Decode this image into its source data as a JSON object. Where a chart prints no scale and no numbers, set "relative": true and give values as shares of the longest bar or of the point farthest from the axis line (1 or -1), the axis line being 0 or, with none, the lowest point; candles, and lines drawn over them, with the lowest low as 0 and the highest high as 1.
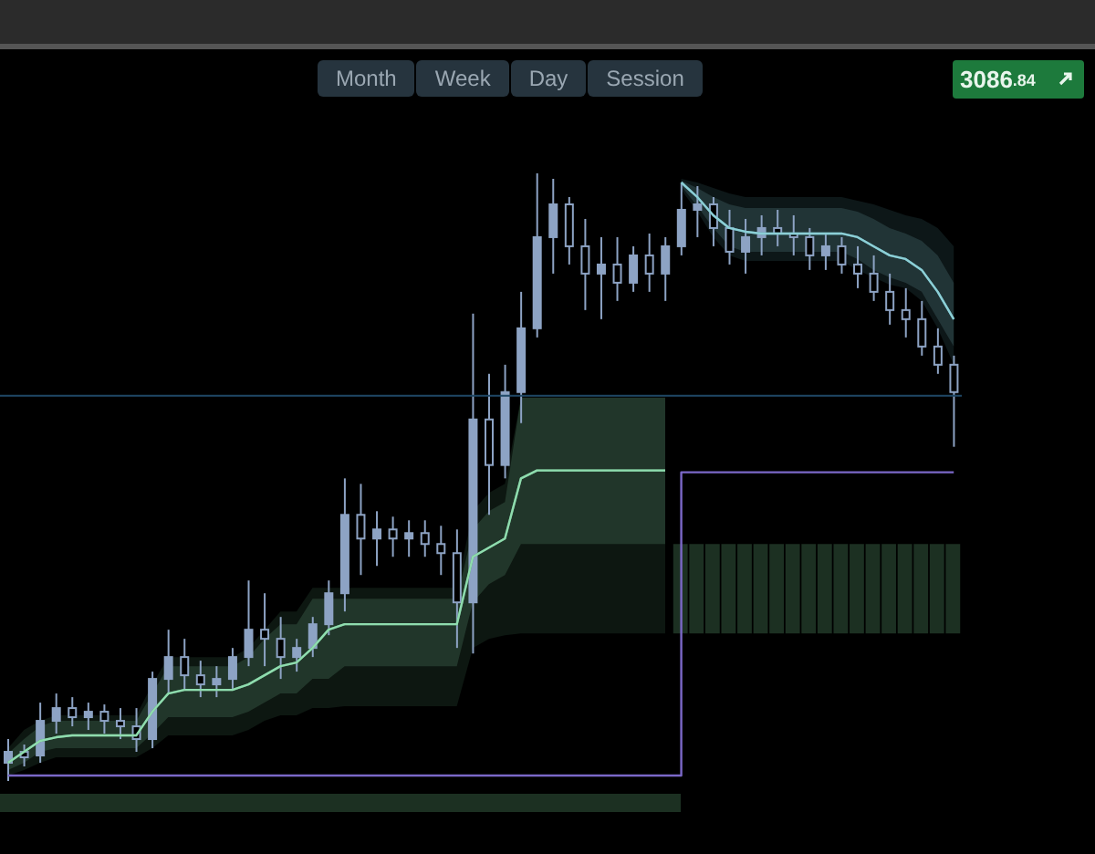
{
  "chart_data": {
    "type": "candlestick",
    "relative": true,
    "tick_labels": false,
    "color": "#8da3c4",
    "categories": [
      null,
      null,
      null,
      null,
      null,
      null,
      null,
      null,
      null,
      null,
      null,
      null,
      null,
      null,
      null,
      null,
      null,
      null,
      null,
      null,
      null,
      null,
      null,
      null,
      null,
      null,
      null,
      null,
      null,
      null,
      null,
      null,
      null,
      null,
      null,
      null,
      null,
      null,
      null,
      null,
      null,
      null,
      null,
      null,
      null,
      null,
      null,
      null,
      null,
      null,
      null,
      null,
      null,
      null,
      null,
      null,
      null,
      null,
      null,
      null
    ],
    "ohlc": [
      [
        0.03,
        0.069,
        0,
        0.048
      ],
      [
        0.048,
        0.06,
        0.024,
        0.039
      ],
      [
        0.042,
        0.129,
        0.03,
        0.099
      ],
      [
        0.099,
        0.144,
        0.078,
        0.12
      ],
      [
        0.12,
        0.138,
        0.09,
        0.105
      ],
      [
        0.105,
        0.129,
        0.084,
        0.114
      ],
      [
        0.114,
        0.126,
        0.078,
        0.099
      ],
      [
        0.099,
        0.12,
        0.069,
        0.09
      ],
      [
        0.09,
        0.12,
        0.048,
        0.069
      ],
      [
        0.069,
        0.18,
        0.054,
        0.168
      ],
      [
        0.168,
        0.249,
        0.144,
        0.204
      ],
      [
        0.204,
        0.234,
        0.15,
        0.174
      ],
      [
        0.174,
        0.198,
        0.138,
        0.159
      ],
      [
        0.159,
        0.189,
        0.138,
        0.168
      ],
      [
        0.168,
        0.219,
        0.15,
        0.204
      ],
      [
        0.204,
        0.33,
        0.189,
        0.249
      ],
      [
        0.249,
        0.309,
        0.189,
        0.234
      ],
      [
        0.234,
        0.27,
        0.168,
        0.204
      ],
      [
        0.204,
        0.234,
        0.18,
        0.219
      ],
      [
        0.219,
        0.27,
        0.204,
        0.258
      ],
      [
        0.258,
        0.33,
        0.24,
        0.309
      ],
      [
        0.309,
        0.498,
        0.279,
        0.438
      ],
      [
        0.438,
        0.489,
        0.339,
        0.399
      ],
      [
        0.399,
        0.444,
        0.354,
        0.414
      ],
      [
        0.414,
        0.435,
        0.369,
        0.399
      ],
      [
        0.399,
        0.429,
        0.369,
        0.408
      ],
      [
        0.408,
        0.429,
        0.369,
        0.39
      ],
      [
        0.39,
        0.42,
        0.339,
        0.375
      ],
      [
        0.375,
        0.414,
        0.219,
        0.294
      ],
      [
        0.294,
        0.769,
        0.21,
        0.595
      ],
      [
        0.595,
        0.67,
        0.438,
        0.52
      ],
      [
        0.52,
        0.685,
        0.498,
        0.64
      ],
      [
        0.64,
        0.805,
        0.589,
        0.745
      ],
      [
        0.745,
        1,
        0.73,
        0.895
      ],
      [
        0.895,
        0.991,
        0.835,
        0.949
      ],
      [
        0.949,
        0.961,
        0.85,
        0.88
      ],
      [
        0.88,
        0.925,
        0.775,
        0.835
      ],
      [
        0.835,
        0.895,
        0.76,
        0.85
      ],
      [
        0.85,
        0.895,
        0.79,
        0.82
      ],
      [
        0.82,
        0.88,
        0.805,
        0.865
      ],
      [
        0.865,
        0.901,
        0.805,
        0.835
      ],
      [
        0.835,
        0.895,
        0.79,
        0.88
      ],
      [
        0.88,
        0.985,
        0.865,
        0.94
      ],
      [
        0.94,
        0.979,
        0.895,
        0.949
      ],
      [
        0.949,
        0.961,
        0.88,
        0.91
      ],
      [
        0.91,
        0.94,
        0.85,
        0.871
      ],
      [
        0.871,
        0.925,
        0.835,
        0.895
      ],
      [
        0.895,
        0.931,
        0.865,
        0.91
      ],
      [
        0.91,
        0.94,
        0.88,
        0.901
      ],
      [
        0.901,
        0.931,
        0.865,
        0.895
      ],
      [
        0.895,
        0.91,
        0.841,
        0.865
      ],
      [
        0.865,
        0.901,
        0.841,
        0.88
      ],
      [
        0.88,
        0.895,
        0.835,
        0.85
      ],
      [
        0.85,
        0.88,
        0.811,
        0.835
      ],
      [
        0.835,
        0.865,
        0.79,
        0.805
      ],
      [
        0.805,
        0.835,
        0.751,
        0.775
      ],
      [
        0.775,
        0.811,
        0.73,
        0.76
      ],
      [
        0.76,
        0.79,
        0.7,
        0.715
      ],
      [
        0.715,
        0.745,
        0.67,
        0.685
      ],
      [
        0.685,
        0.7,
        0.55,
        0.64
      ]
    ],
    "series": [
      {
        "type": "bar",
        "color": "#1c3022",
        "values": [
          null,
          null,
          null,
          null,
          null,
          null,
          null,
          null,
          null,
          null,
          null,
          null,
          null,
          null,
          null,
          null,
          null,
          null,
          null,
          null,
          null,
          null,
          null,
          null,
          null,
          null,
          null,
          null,
          null,
          null,
          null,
          null,
          null,
          null,
          null,
          null,
          null,
          null,
          null,
          null,
          null,
          null,
          0.147,
          0.147,
          0.147,
          0.147,
          0.147,
          0.147,
          0.147,
          0.147,
          0.147,
          0.147,
          0.147,
          0.147,
          0.147,
          0.147,
          0.147,
          0.147,
          0.147,
          0.147
        ],
        "base": [
          null,
          null,
          null,
          null,
          null,
          null,
          null,
          null,
          null,
          null,
          null,
          null,
          null,
          null,
          null,
          null,
          null,
          null,
          null,
          null,
          null,
          null,
          null,
          null,
          null,
          null,
          null,
          null,
          null,
          null,
          null,
          null,
          null,
          null,
          null,
          null,
          null,
          null,
          null,
          null,
          null,
          null,
          0.243,
          0.243,
          0.243,
          0.243,
          0.243,
          0.243,
          0.243,
          0.243,
          0.243,
          0.243,
          0.243,
          0.243,
          0.243,
          0.243,
          0.243,
          0.243,
          0.243,
          0.243
        ]
      },
      {
        "type": "line",
        "color": "#4f8f6a",
        "values": [
          0.03,
          0.048,
          0.066,
          0.072,
          0.075,
          0.075,
          0.075,
          0.075,
          0.075,
          0.114,
          0.144,
          0.15,
          0.15,
          0.15,
          0.15,
          0.159,
          0.174,
          0.189,
          0.195,
          0.219,
          0.249,
          0.258,
          0.258,
          0.258,
          0.258,
          0.258,
          0.258,
          0.258,
          0.258,
          0.369,
          0.384,
          0.399,
          0.498,
          0.511,
          0.511,
          0.511,
          0.511,
          0.511,
          0.511,
          0.511,
          0.511,
          0.511,
          null,
          null,
          null,
          null,
          null,
          null,
          null,
          null,
          null,
          null,
          null,
          null,
          null,
          null,
          null,
          null,
          null,
          null
        ],
        "lower": [
          0.009,
          0.018,
          0.03,
          0.039,
          0.039,
          0.039,
          0.039,
          0.039,
          0.039,
          0.054,
          0.075,
          0.075,
          0.075,
          0.075,
          0.075,
          0.084,
          0.099,
          0.108,
          0.108,
          0.12,
          0.12,
          0.123,
          0.123,
          0.123,
          0.123,
          0.123,
          0.123,
          0.123,
          0.123,
          0.219,
          0.234,
          0.24,
          0.243,
          0.243,
          0.243,
          0.243,
          0.243,
          0.243,
          0.243,
          0.243,
          0.243,
          0.243,
          null,
          null,
          null,
          null,
          null,
          null,
          null,
          null,
          null,
          null,
          null,
          null,
          null,
          null,
          null,
          null,
          null,
          null
        ],
        "upper": [
          0.054,
          0.084,
          0.099,
          0.108,
          0.108,
          0.108,
          0.108,
          0.108,
          0.108,
          0.159,
          0.204,
          0.204,
          0.204,
          0.204,
          0.204,
          0.219,
          0.249,
          0.279,
          0.279,
          0.318,
          0.318,
          0.318,
          0.318,
          0.318,
          0.318,
          0.318,
          0.318,
          0.318,
          0.318,
          0.444,
          0.474,
          0.489,
          0.631,
          0.631,
          0.631,
          0.631,
          0.631,
          0.631,
          0.631,
          0.631,
          0.631,
          0.631,
          null,
          null,
          null,
          null,
          null,
          null,
          null,
          null,
          null,
          null,
          null,
          null,
          null,
          null,
          null,
          null,
          null,
          null
        ]
      },
      {
        "type": "line",
        "color": "#8fdcae",
        "values": [
          0.03,
          0.048,
          0.066,
          0.072,
          0.075,
          0.075,
          0.075,
          0.075,
          0.075,
          0.114,
          0.144,
          0.15,
          0.15,
          0.15,
          0.15,
          0.159,
          0.174,
          0.189,
          0.195,
          0.219,
          0.249,
          0.258,
          0.258,
          0.258,
          0.258,
          0.258,
          0.258,
          0.258,
          0.258,
          0.369,
          0.384,
          0.399,
          0.498,
          0.511,
          0.511,
          0.511,
          0.511,
          0.511,
          0.511,
          0.511,
          0.511,
          0.511,
          null,
          null,
          null,
          null,
          null,
          null,
          null,
          null,
          null,
          null,
          null,
          null,
          null,
          null,
          null,
          null,
          null,
          null
        ],
        "lower": [
          0.018,
          0.03,
          0.048,
          0.054,
          0.054,
          0.054,
          0.054,
          0.054,
          0.054,
          0.078,
          0.105,
          0.105,
          0.105,
          0.105,
          0.105,
          0.114,
          0.129,
          0.144,
          0.144,
          0.168,
          0.168,
          0.189,
          0.189,
          0.189,
          0.189,
          0.189,
          0.189,
          0.189,
          0.189,
          0.294,
          0.324,
          0.339,
          0.39,
          0.39,
          0.39,
          0.39,
          0.39,
          0.39,
          0.39,
          0.39,
          0.39,
          0.39,
          null,
          null,
          null,
          null,
          null,
          null,
          null,
          null,
          null,
          null,
          null,
          null,
          null,
          null,
          null,
          null,
          null,
          null
        ],
        "upper": [
          0.045,
          0.069,
          0.09,
          0.099,
          0.099,
          0.099,
          0.099,
          0.099,
          0.099,
          0.144,
          0.189,
          0.189,
          0.189,
          0.189,
          0.189,
          0.204,
          0.234,
          0.258,
          0.258,
          0.3,
          0.3,
          0.3,
          0.3,
          0.3,
          0.3,
          0.3,
          0.3,
          0.3,
          0.3,
          0.414,
          0.444,
          0.459,
          0.631,
          0.631,
          0.631,
          0.631,
          0.631,
          0.631,
          0.631,
          0.631,
          0.631,
          0.631,
          null,
          null,
          null,
          null,
          null,
          null,
          null,
          null,
          null,
          null,
          null,
          null,
          null,
          null,
          null,
          null,
          null,
          null
        ]
      },
      {
        "type": "line",
        "color": "#4f8e98",
        "values": [
          null,
          null,
          null,
          null,
          null,
          null,
          null,
          null,
          null,
          null,
          null,
          null,
          null,
          null,
          null,
          null,
          null,
          null,
          null,
          null,
          null,
          null,
          null,
          null,
          null,
          null,
          null,
          null,
          null,
          null,
          null,
          null,
          null,
          null,
          null,
          null,
          null,
          null,
          null,
          null,
          null,
          null,
          0.985,
          0.961,
          0.931,
          0.91,
          0.904,
          0.901,
          0.901,
          0.901,
          0.901,
          0.901,
          0.901,
          0.895,
          0.88,
          0.865,
          0.859,
          0.841,
          0.805,
          0.76
        ],
        "lower": [
          null,
          null,
          null,
          null,
          null,
          null,
          null,
          null,
          null,
          null,
          null,
          null,
          null,
          null,
          null,
          null,
          null,
          null,
          null,
          null,
          null,
          null,
          null,
          null,
          null,
          null,
          null,
          null,
          null,
          null,
          null,
          null,
          null,
          null,
          null,
          null,
          null,
          null,
          null,
          null,
          null,
          null,
          0.973,
          0.937,
          0.895,
          0.865,
          0.856,
          0.856,
          0.856,
          0.856,
          0.856,
          0.856,
          0.856,
          0.841,
          0.829,
          0.817,
          0.811,
          0.79,
          0.745,
          0.685
        ],
        "upper": [
          null,
          null,
          null,
          null,
          null,
          null,
          null,
          null,
          null,
          null,
          null,
          null,
          null,
          null,
          null,
          null,
          null,
          null,
          null,
          null,
          null,
          null,
          null,
          null,
          null,
          null,
          null,
          null,
          null,
          null,
          null,
          null,
          null,
          null,
          null,
          null,
          null,
          null,
          null,
          null,
          null,
          null,
          0.991,
          0.985,
          0.976,
          0.967,
          0.961,
          0.961,
          0.961,
          0.961,
          0.961,
          0.961,
          0.961,
          0.955,
          0.949,
          0.94,
          0.931,
          0.925,
          0.91,
          0.88
        ]
      },
      {
        "type": "line",
        "color": "#8ccfd6",
        "values": [
          null,
          null,
          null,
          null,
          null,
          null,
          null,
          null,
          null,
          null,
          null,
          null,
          null,
          null,
          null,
          null,
          null,
          null,
          null,
          null,
          null,
          null,
          null,
          null,
          null,
          null,
          null,
          null,
          null,
          null,
          null,
          null,
          null,
          null,
          null,
          null,
          null,
          null,
          null,
          null,
          null,
          null,
          0.985,
          0.961,
          0.931,
          0.91,
          0.904,
          0.901,
          0.901,
          0.901,
          0.901,
          0.901,
          0.901,
          0.895,
          0.88,
          0.865,
          0.859,
          0.841,
          0.805,
          0.76
        ],
        "lower": [
          null,
          null,
          null,
          null,
          null,
          null,
          null,
          null,
          null,
          null,
          null,
          null,
          null,
          null,
          null,
          null,
          null,
          null,
          null,
          null,
          null,
          null,
          null,
          null,
          null,
          null,
          null,
          null,
          null,
          null,
          null,
          null,
          null,
          null,
          null,
          null,
          null,
          null,
          null,
          null,
          null,
          null,
          0.979,
          0.946,
          0.91,
          0.88,
          0.871,
          0.871,
          0.871,
          0.871,
          0.871,
          0.871,
          0.871,
          0.859,
          0.841,
          0.829,
          0.82,
          0.805,
          0.76,
          0.715
        ],
        "upper": [
          null,
          null,
          null,
          null,
          null,
          null,
          null,
          null,
          null,
          null,
          null,
          null,
          null,
          null,
          null,
          null,
          null,
          null,
          null,
          null,
          null,
          null,
          null,
          null,
          null,
          null,
          null,
          null,
          null,
          null,
          null,
          null,
          null,
          null,
          null,
          null,
          null,
          null,
          null,
          null,
          null,
          null,
          0.988,
          0.976,
          0.961,
          0.949,
          0.943,
          0.943,
          0.943,
          0.943,
          0.943,
          0.943,
          0.943,
          0.937,
          0.925,
          0.91,
          0.901,
          0.889,
          0.865,
          0.82
        ]
      },
      {
        "type": "step",
        "color": "#7b68c8",
        "values": [
          0.009,
          0.009,
          0.009,
          0.009,
          0.009,
          0.009,
          0.009,
          0.009,
          0.009,
          0.009,
          0.009,
          0.009,
          0.009,
          0.009,
          0.009,
          0.009,
          0.009,
          0.009,
          0.009,
          0.009,
          0.009,
          0.009,
          0.009,
          0.009,
          0.009,
          0.009,
          0.009,
          0.009,
          0.009,
          0.009,
          0.009,
          0.009,
          0.009,
          0.009,
          0.009,
          0.009,
          0.009,
          0.009,
          0.009,
          0.009,
          0.009,
          0.009,
          0.508,
          0.508,
          0.508,
          0.508,
          0.508,
          0.508,
          0.508,
          0.508,
          0.508,
          0.508,
          0.508,
          0.508,
          0.508,
          0.508,
          0.508,
          0.508,
          0.508,
          0.508
        ]
      }
    ],
    "ref_lines": [
      {
        "axis": "y",
        "value": 0.634,
        "color": "#1f4766"
      }
    ],
    "annotations": [
      "Month",
      "Week",
      "Day",
      "Session",
      "3086.84"
    ]
  }
}
